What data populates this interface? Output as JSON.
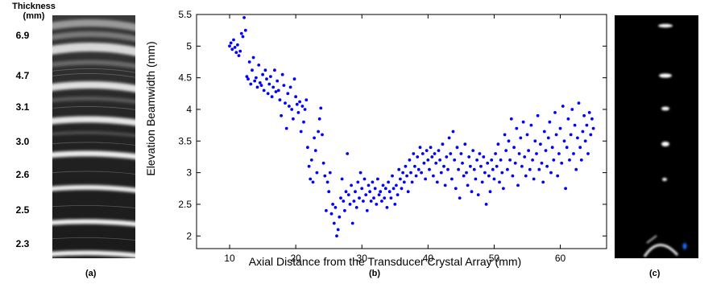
{
  "panel_a": {
    "title_line1": "Thickness",
    "title_line2": "(mm)",
    "thickness_labels": [
      "6.9",
      "4.7",
      "3.1",
      "3.0",
      "2.6",
      "2.5",
      "2.3"
    ],
    "caption": "(a)"
  },
  "panel_b": {
    "caption": "(b)"
  },
  "panel_c": {
    "caption": "(c)"
  },
  "colors": {
    "points": "#0000ff",
    "axes": "#000000",
    "background": "#ffffff"
  },
  "chart_data": {
    "type": "scatter",
    "title": "",
    "xlabel": "Axial Distance from the Transducer Crystal Array (mm)",
    "ylabel": "Elevation Beamwidth (mm)",
    "xlim": [
      5,
      67
    ],
    "ylim": [
      1.8,
      5.5
    ],
    "xticks": [
      10,
      20,
      30,
      40,
      50,
      60
    ],
    "yticks": [
      2,
      2.5,
      3,
      3.5,
      4,
      4.5,
      5,
      5.5
    ],
    "grid": false,
    "legend": "none",
    "series": [
      {
        "color": "#0000ff",
        "points": [
          [
            10.0,
            5.0
          ],
          [
            10.2,
            5.05
          ],
          [
            10.4,
            4.95
          ],
          [
            10.6,
            5.1
          ],
          [
            10.8,
            4.98
          ],
          [
            11.0,
            4.9
          ],
          [
            11.2,
            5.02
          ],
          [
            11.4,
            4.85
          ],
          [
            11.6,
            4.92
          ],
          [
            11.8,
            5.2
          ],
          [
            12.0,
            5.15
          ],
          [
            12.2,
            5.45
          ],
          [
            12.4,
            5.25
          ],
          [
            12.6,
            4.52
          ],
          [
            12.8,
            4.48
          ],
          [
            13.0,
            4.75
          ],
          [
            13.2,
            4.4
          ],
          [
            13.4,
            4.62
          ],
          [
            13.6,
            4.82
          ],
          [
            13.8,
            4.45
          ],
          [
            14.0,
            4.5
          ],
          [
            14.2,
            4.35
          ],
          [
            14.4,
            4.7
          ],
          [
            14.6,
            4.42
          ],
          [
            14.8,
            4.38
          ],
          [
            15.0,
            4.55
          ],
          [
            15.2,
            4.3
          ],
          [
            15.4,
            4.62
          ],
          [
            15.6,
            4.48
          ],
          [
            15.8,
            4.25
          ],
          [
            16.0,
            4.4
          ],
          [
            16.2,
            4.52
          ],
          [
            16.4,
            4.2
          ],
          [
            16.6,
            4.35
          ],
          [
            16.8,
            4.62
          ],
          [
            17.0,
            4.28
          ],
          [
            17.2,
            4.45
          ],
          [
            17.4,
            4.3
          ],
          [
            17.6,
            4.15
          ],
          [
            17.8,
            3.9
          ],
          [
            18.0,
            4.55
          ],
          [
            18.2,
            4.38
          ],
          [
            18.4,
            4.1
          ],
          [
            18.6,
            3.7
          ],
          [
            18.8,
            4.25
          ],
          [
            19.0,
            4.05
          ],
          [
            19.2,
            4.35
          ],
          [
            19.4,
            4.0
          ],
          [
            19.6,
            3.85
          ],
          [
            19.8,
            4.48
          ],
          [
            20.0,
            4.2
          ],
          [
            20.2,
            4.08
          ],
          [
            20.4,
            3.95
          ],
          [
            20.6,
            4.12
          ],
          [
            20.8,
            3.65
          ],
          [
            21.0,
            4.05
          ],
          [
            21.2,
            3.8
          ],
          [
            21.4,
            4.0
          ],
          [
            21.6,
            4.15
          ],
          [
            21.8,
            3.4
          ],
          [
            22.0,
            3.1
          ],
          [
            22.2,
            2.9
          ],
          [
            22.4,
            3.2
          ],
          [
            22.6,
            2.85
          ],
          [
            22.8,
            3.55
          ],
          [
            23.0,
            3.35
          ],
          [
            23.2,
            3.0
          ],
          [
            23.4,
            3.65
          ],
          [
            23.6,
            3.85
          ],
          [
            23.8,
            4.02
          ],
          [
            24.0,
            3.6
          ],
          [
            24.2,
            3.15
          ],
          [
            24.4,
            2.95
          ],
          [
            24.6,
            2.4
          ],
          [
            24.8,
            2.85
          ],
          [
            25.0,
            2.7
          ],
          [
            25.2,
            3.0
          ],
          [
            25.4,
            2.35
          ],
          [
            25.6,
            2.5
          ],
          [
            25.8,
            2.2
          ],
          [
            26.0,
            2.45
          ],
          [
            26.2,
            2.0
          ],
          [
            26.4,
            2.1
          ],
          [
            26.6,
            2.3
          ],
          [
            26.8,
            2.6
          ],
          [
            27.0,
            2.9
          ],
          [
            27.2,
            2.55
          ],
          [
            27.4,
            2.4
          ],
          [
            27.6,
            2.7
          ],
          [
            27.8,
            3.3
          ],
          [
            28.0,
            2.65
          ],
          [
            28.2,
            2.5
          ],
          [
            28.4,
            2.8
          ],
          [
            28.6,
            2.2
          ],
          [
            28.8,
            2.55
          ],
          [
            29.0,
            2.7
          ],
          [
            29.2,
            2.45
          ],
          [
            29.4,
            2.85
          ],
          [
            29.6,
            2.6
          ],
          [
            29.8,
            3.0
          ],
          [
            30.0,
            2.75
          ],
          [
            30.2,
            2.55
          ],
          [
            30.4,
            2.9
          ],
          [
            30.6,
            2.65
          ],
          [
            30.8,
            2.4
          ],
          [
            31.0,
            2.8
          ],
          [
            31.2,
            2.7
          ],
          [
            31.4,
            2.55
          ],
          [
            31.6,
            2.85
          ],
          [
            31.8,
            2.6
          ],
          [
            32.0,
            2.75
          ],
          [
            32.2,
            2.5
          ],
          [
            32.4,
            2.9
          ],
          [
            32.6,
            2.65
          ],
          [
            32.8,
            2.7
          ],
          [
            33.0,
            2.55
          ],
          [
            33.2,
            2.8
          ],
          [
            33.4,
            2.6
          ],
          [
            33.6,
            2.75
          ],
          [
            33.8,
            2.45
          ],
          [
            34.0,
            2.85
          ],
          [
            34.2,
            2.7
          ],
          [
            34.4,
            2.6
          ],
          [
            34.6,
            2.95
          ],
          [
            34.8,
            2.75
          ],
          [
            35.0,
            2.5
          ],
          [
            35.2,
            2.8
          ],
          [
            35.4,
            2.65
          ],
          [
            35.6,
            3.05
          ],
          [
            35.8,
            2.9
          ],
          [
            36.0,
            2.75
          ],
          [
            36.2,
            3.0
          ],
          [
            36.4,
            2.85
          ],
          [
            36.6,
            3.1
          ],
          [
            36.8,
            2.95
          ],
          [
            37.0,
            2.7
          ],
          [
            37.2,
            3.2
          ],
          [
            37.4,
            3.0
          ],
          [
            37.6,
            2.85
          ],
          [
            37.8,
            3.3
          ],
          [
            38.0,
            3.1
          ],
          [
            38.2,
            2.95
          ],
          [
            38.4,
            3.25
          ],
          [
            38.6,
            3.05
          ],
          [
            38.8,
            3.4
          ],
          [
            39.0,
            3.0
          ],
          [
            39.2,
            3.3
          ],
          [
            39.4,
            3.15
          ],
          [
            39.6,
            2.9
          ],
          [
            39.8,
            3.35
          ],
          [
            40.0,
            3.2
          ],
          [
            40.2,
            3.05
          ],
          [
            40.4,
            3.4
          ],
          [
            40.6,
            3.25
          ],
          [
            40.8,
            2.95
          ],
          [
            41.0,
            3.3
          ],
          [
            41.2,
            3.15
          ],
          [
            41.4,
            2.85
          ],
          [
            41.6,
            3.35
          ],
          [
            41.8,
            3.2
          ],
          [
            42.0,
            3.0
          ],
          [
            42.2,
            3.45
          ],
          [
            42.4,
            3.1
          ],
          [
            42.6,
            2.8
          ],
          [
            42.8,
            3.25
          ],
          [
            43.0,
            3.05
          ],
          [
            43.2,
            3.55
          ],
          [
            43.4,
            3.3
          ],
          [
            43.6,
            2.9
          ],
          [
            43.8,
            3.65
          ],
          [
            44.0,
            3.2
          ],
          [
            44.2,
            2.75
          ],
          [
            44.4,
            3.4
          ],
          [
            44.6,
            3.05
          ],
          [
            44.8,
            2.6
          ],
          [
            45.0,
            3.3
          ],
          [
            45.2,
            3.15
          ],
          [
            45.4,
            2.95
          ],
          [
            45.6,
            3.45
          ],
          [
            45.8,
            3.0
          ],
          [
            46.0,
            2.8
          ],
          [
            46.2,
            3.25
          ],
          [
            46.4,
            3.1
          ],
          [
            46.6,
            2.7
          ],
          [
            46.8,
            3.35
          ],
          [
            47.0,
            3.05
          ],
          [
            47.2,
            2.9
          ],
          [
            47.4,
            3.2
          ],
          [
            47.6,
            2.65
          ],
          [
            47.8,
            3.3
          ],
          [
            48.0,
            3.1
          ],
          [
            48.2,
            2.85
          ],
          [
            48.4,
            3.25
          ],
          [
            48.6,
            3.0
          ],
          [
            48.8,
            2.5
          ],
          [
            49.0,
            3.15
          ],
          [
            49.2,
            2.95
          ],
          [
            49.4,
            2.7
          ],
          [
            49.6,
            3.2
          ],
          [
            49.8,
            3.05
          ],
          [
            50.0,
            2.9
          ],
          [
            50.2,
            3.3
          ],
          [
            50.4,
            3.1
          ],
          [
            50.6,
            3.45
          ],
          [
            50.8,
            2.85
          ],
          [
            51.0,
            3.2
          ],
          [
            51.2,
            3.0
          ],
          [
            51.4,
            2.75
          ],
          [
            51.6,
            3.6
          ],
          [
            51.8,
            3.35
          ],
          [
            52.0,
            3.05
          ],
          [
            52.2,
            3.5
          ],
          [
            52.4,
            3.2
          ],
          [
            52.6,
            3.85
          ],
          [
            52.8,
            2.95
          ],
          [
            53.0,
            3.4
          ],
          [
            53.2,
            3.15
          ],
          [
            53.4,
            3.7
          ],
          [
            53.6,
            2.8
          ],
          [
            53.8,
            3.3
          ],
          [
            54.0,
            3.55
          ],
          [
            54.2,
            3.1
          ],
          [
            54.4,
            3.8
          ],
          [
            54.6,
            3.25
          ],
          [
            54.8,
            2.95
          ],
          [
            55.0,
            3.6
          ],
          [
            55.2,
            3.35
          ],
          [
            55.4,
            3.05
          ],
          [
            55.6,
            3.75
          ],
          [
            55.8,
            3.2
          ],
          [
            56.0,
            2.9
          ],
          [
            56.2,
            3.5
          ],
          [
            56.4,
            3.3
          ],
          [
            56.6,
            3.9
          ],
          [
            56.8,
            3.05
          ],
          [
            57.0,
            3.45
          ],
          [
            57.2,
            3.15
          ],
          [
            57.4,
            2.85
          ],
          [
            57.6,
            3.65
          ],
          [
            57.8,
            3.35
          ],
          [
            58.0,
            3.1
          ],
          [
            58.2,
            3.55
          ],
          [
            58.4,
            3.8
          ],
          [
            58.6,
            3.0
          ],
          [
            58.8,
            3.4
          ],
          [
            59.0,
            3.2
          ],
          [
            59.2,
            3.95
          ],
          [
            59.4,
            3.6
          ],
          [
            59.6,
            2.95
          ],
          [
            59.8,
            3.3
          ],
          [
            60.0,
            3.7
          ],
          [
            60.2,
            3.15
          ],
          [
            60.4,
            4.05
          ],
          [
            60.6,
            3.5
          ],
          [
            60.8,
            2.75
          ],
          [
            61.0,
            3.4
          ],
          [
            61.2,
            3.85
          ],
          [
            61.4,
            3.2
          ],
          [
            61.6,
            3.6
          ],
          [
            61.8,
            4.0
          ],
          [
            62.0,
            3.3
          ],
          [
            62.2,
            3.75
          ],
          [
            62.4,
            3.05
          ],
          [
            62.6,
            3.55
          ],
          [
            62.8,
            4.1
          ],
          [
            63.0,
            3.4
          ],
          [
            63.2,
            3.2
          ],
          [
            63.4,
            3.65
          ],
          [
            63.6,
            3.9
          ],
          [
            63.8,
            3.5
          ],
          [
            64.0,
            3.75
          ],
          [
            64.2,
            3.3
          ],
          [
            64.4,
            3.95
          ],
          [
            64.6,
            3.6
          ],
          [
            64.8,
            3.85
          ],
          [
            65.0,
            3.7
          ]
        ]
      }
    ]
  }
}
